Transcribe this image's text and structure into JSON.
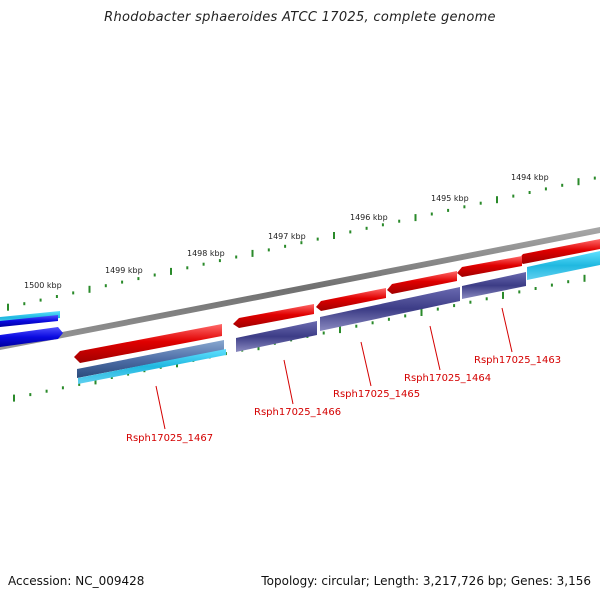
{
  "title": "Rhodobacter sphaeroides ATCC 17025, complete genome",
  "accession": "Accession: NC_009428",
  "summary": "Topology: circular; Length: 3,217,726 bp; Genes: 3,156",
  "scale_labels": [
    "1494 kbp",
    "1495 kbp",
    "1496 kbp",
    "1497 kbp",
    "1498 kbp",
    "1499 kbp",
    "1500 kbp"
  ],
  "gene_labels": [
    "Rsph17025_1463",
    "Rsph17025_1464",
    "Rsph17025_1465",
    "Rsph17025_1466",
    "Rsph17025_1467"
  ],
  "colors": {
    "backbone": "#808080",
    "forward_gene": "#e00000",
    "reverse_gene": "#3c3c86",
    "reverse_gene_alt": "#5a7ab0",
    "cyan_feature": "#20c0e0",
    "blue_feature": "#1010e0",
    "tick": "#2a8a2a",
    "label": "#d40000"
  }
}
